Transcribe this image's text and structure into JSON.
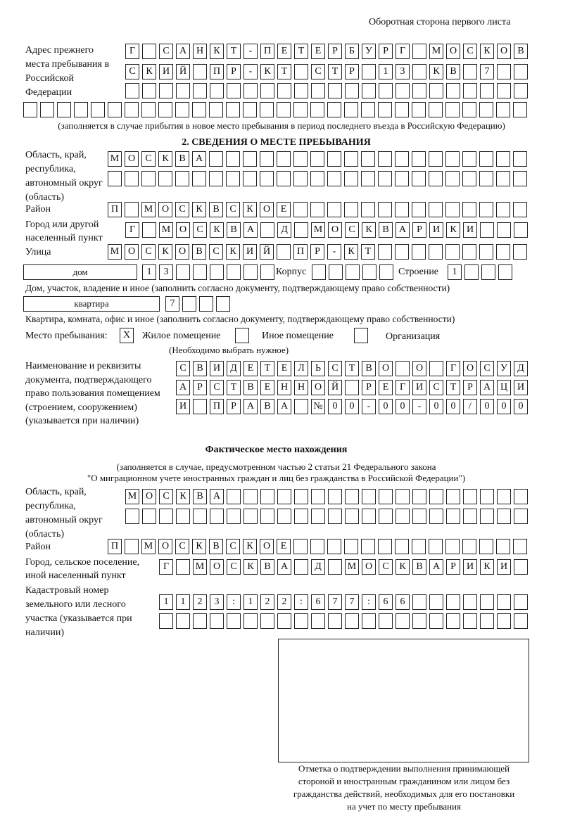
{
  "header": {
    "side_label": "Оборотная сторона первого листа"
  },
  "previous_address": {
    "label": "Адрес прежнего места пребывания в Российской Федерации",
    "rows": [
      [
        "Г",
        "",
        "С",
        "А",
        "Н",
        "К",
        "Т",
        "-",
        "П",
        "Е",
        "Т",
        "Е",
        "Р",
        "Б",
        "У",
        "Р",
        "Г",
        "",
        "М",
        "О",
        "С",
        "К",
        "О",
        "В"
      ],
      [
        "С",
        "К",
        "И",
        "Й",
        "",
        "П",
        "Р",
        "-",
        "К",
        "Т",
        "",
        "С",
        "Т",
        "Р",
        "",
        "1",
        "3",
        "",
        "К",
        "В",
        "",
        "7",
        "",
        ""
      ],
      [
        "",
        "",
        "",
        "",
        "",
        "",
        "",
        "",
        "",
        "",
        "",
        "",
        "",
        "",
        "",
        "",
        "",
        "",
        "",
        "",
        "",
        "",
        "",
        ""
      ],
      [
        "",
        "",
        "",
        "",
        "",
        "",
        "",
        "",
        "",
        "",
        "",
        "",
        "",
        "",
        "",
        "",
        "",
        "",
        "",
        "",
        "",
        "",
        "",
        "",
        "",
        "",
        "",
        "",
        "",
        ""
      ]
    ],
    "note": "(заполняется в случае прибытия в новое место пребывания в период последнего въезда в Российскую Федерацию)"
  },
  "section2": {
    "title": "2. СВЕДЕНИЯ О МЕСТЕ ПРЕБЫВАНИЯ",
    "region_label": "Область, край, республика, автономный округ (область)",
    "region_rows": [
      [
        "М",
        "О",
        "С",
        "К",
        "В",
        "А",
        "",
        "",
        "",
        "",
        "",
        "",
        "",
        "",
        "",
        "",
        "",
        "",
        "",
        "",
        "",
        "",
        "",
        "",
        ""
      ],
      [
        "",
        "",
        "",
        "",
        "",
        "",
        "",
        "",
        "",
        "",
        "",
        "",
        "",
        "",
        "",
        "",
        "",
        "",
        "",
        "",
        "",
        "",
        "",
        "",
        ""
      ]
    ],
    "district_label": "Район",
    "district_row": [
      "П",
      "",
      "М",
      "О",
      "С",
      "К",
      "В",
      "С",
      "К",
      "О",
      "Е",
      "",
      "",
      "",
      "",
      "",
      "",
      "",
      "",
      "",
      "",
      "",
      "",
      "",
      ""
    ],
    "city_label": "Город или другой населенный пункт",
    "city_row": [
      "Г",
      "",
      "М",
      "О",
      "С",
      "К",
      "В",
      "А",
      "",
      "Д",
      "",
      "М",
      "О",
      "С",
      "К",
      "В",
      "А",
      "Р",
      "И",
      "К",
      "И",
      "",
      "",
      ""
    ],
    "street_label": "Улица",
    "street_row": [
      "М",
      "О",
      "С",
      "К",
      "О",
      "В",
      "С",
      "К",
      "И",
      "Й",
      "",
      "П",
      "Р",
      "-",
      "К",
      "Т",
      "",
      "",
      "",
      "",
      "",
      "",
      "",
      "",
      ""
    ],
    "house_type": "дом",
    "house_cells": [
      "1",
      "3",
      "",
      "",
      "",
      "",
      "",
      ""
    ],
    "korpus_label": "Корпус",
    "korpus_cells": [
      "",
      "",
      "",
      "",
      ""
    ],
    "building_label": "Строение",
    "building_cells": [
      "1",
      "",
      "",
      ""
    ],
    "house_note": "Дом, участок, владение и иное (заполнить согласно документу, подтверждающему право собственности)",
    "apt_type": "квартира",
    "apt_cells": [
      "7",
      "",
      "",
      ""
    ],
    "apt_note": "Квартира, комната, офис и иное (заполнить согласно документу, подтверждающему право собственности)",
    "stay_place_label": "Место пребывания:",
    "stay_options": [
      {
        "label": "Жилое помещение",
        "mark": "X"
      },
      {
        "label": "Иное помещение",
        "mark": ""
      },
      {
        "label": "Организация",
        "mark": ""
      }
    ],
    "stay_note": "(Необходимо выбрать нужное)",
    "doc_label": "Наименование и реквизиты документа, подтверждающего право пользования помещением (строением, сооружением) (указывается при наличии)",
    "doc_rows": [
      [
        "С",
        "В",
        "И",
        "Д",
        "Е",
        "Т",
        "Е",
        "Л",
        "Ь",
        "С",
        "Т",
        "В",
        "О",
        "",
        "О",
        "",
        "Г",
        "О",
        "С",
        "У",
        "Д"
      ],
      [
        "А",
        "Р",
        "С",
        "Т",
        "В",
        "Е",
        "Н",
        "Н",
        "О",
        "Й",
        "",
        "Р",
        "Е",
        "Г",
        "И",
        "С",
        "Т",
        "Р",
        "А",
        "Ц",
        "И"
      ],
      [
        "И",
        "",
        "П",
        "Р",
        "А",
        "В",
        "А",
        "",
        "№",
        "0",
        "0",
        "-",
        "0",
        "0",
        "-",
        "0",
        "0",
        "/",
        "0",
        "0",
        "0"
      ]
    ]
  },
  "actual_location": {
    "title": "Фактическое место нахождения",
    "note_line1": "(заполняется в случае, предусмотренном частью 2 статьи 21 Федерального закона",
    "note_line2": "\"О миграционном учете иностранных граждан и лиц без гражданства в Российской Федерации\")",
    "region_label": "Область, край, республика, автономный округ (область)",
    "region_rows": [
      [
        "М",
        "О",
        "С",
        "К",
        "В",
        "А",
        "",
        "",
        "",
        "",
        "",
        "",
        "",
        "",
        "",
        "",
        "",
        "",
        "",
        "",
        "",
        "",
        "",
        ""
      ],
      [
        "",
        "",
        "",
        "",
        "",
        "",
        "",
        "",
        "",
        "",
        "",
        "",
        "",
        "",
        "",
        "",
        "",
        "",
        "",
        "",
        "",
        "",
        "",
        ""
      ]
    ],
    "district_label": "Район",
    "district_row": [
      "П",
      "",
      "М",
      "О",
      "С",
      "К",
      "В",
      "С",
      "К",
      "О",
      "Е",
      "",
      "",
      "",
      "",
      "",
      "",
      "",
      "",
      "",
      "",
      "",
      "",
      "",
      ""
    ],
    "city_label": "Город, сельское поселение, иной населенный пункт",
    "city_row": [
      "Г",
      "",
      "М",
      "О",
      "С",
      "К",
      "В",
      "А",
      "",
      "Д",
      "",
      "М",
      "О",
      "С",
      "К",
      "В",
      "А",
      "Р",
      "И",
      "К",
      "И",
      ""
    ],
    "cadastral_label": "Кадастровый номер земельного или лесного участка (указывается при наличии)",
    "cadastral_rows": [
      [
        "1",
        "1",
        "2",
        "3",
        ":",
        "1",
        "2",
        "2",
        ":",
        "6",
        "7",
        "7",
        ":",
        "6",
        "6",
        "",
        "",
        "",
        "",
        "",
        "",
        ""
      ],
      [
        "",
        "",
        "",
        "",
        "",
        "",
        "",
        "",
        "",
        "",
        "",
        "",
        "",
        "",
        "",
        "",
        "",
        "",
        "",
        "",
        "",
        ""
      ]
    ]
  },
  "confirmation": {
    "caption_lines": [
      "Отметка о подтверждении выполнения принимающей",
      "стороной и иностранным гражданином или лицом без",
      "гражданства действий, необходимых для его постановки",
      "на учет по месту пребывания"
    ]
  }
}
